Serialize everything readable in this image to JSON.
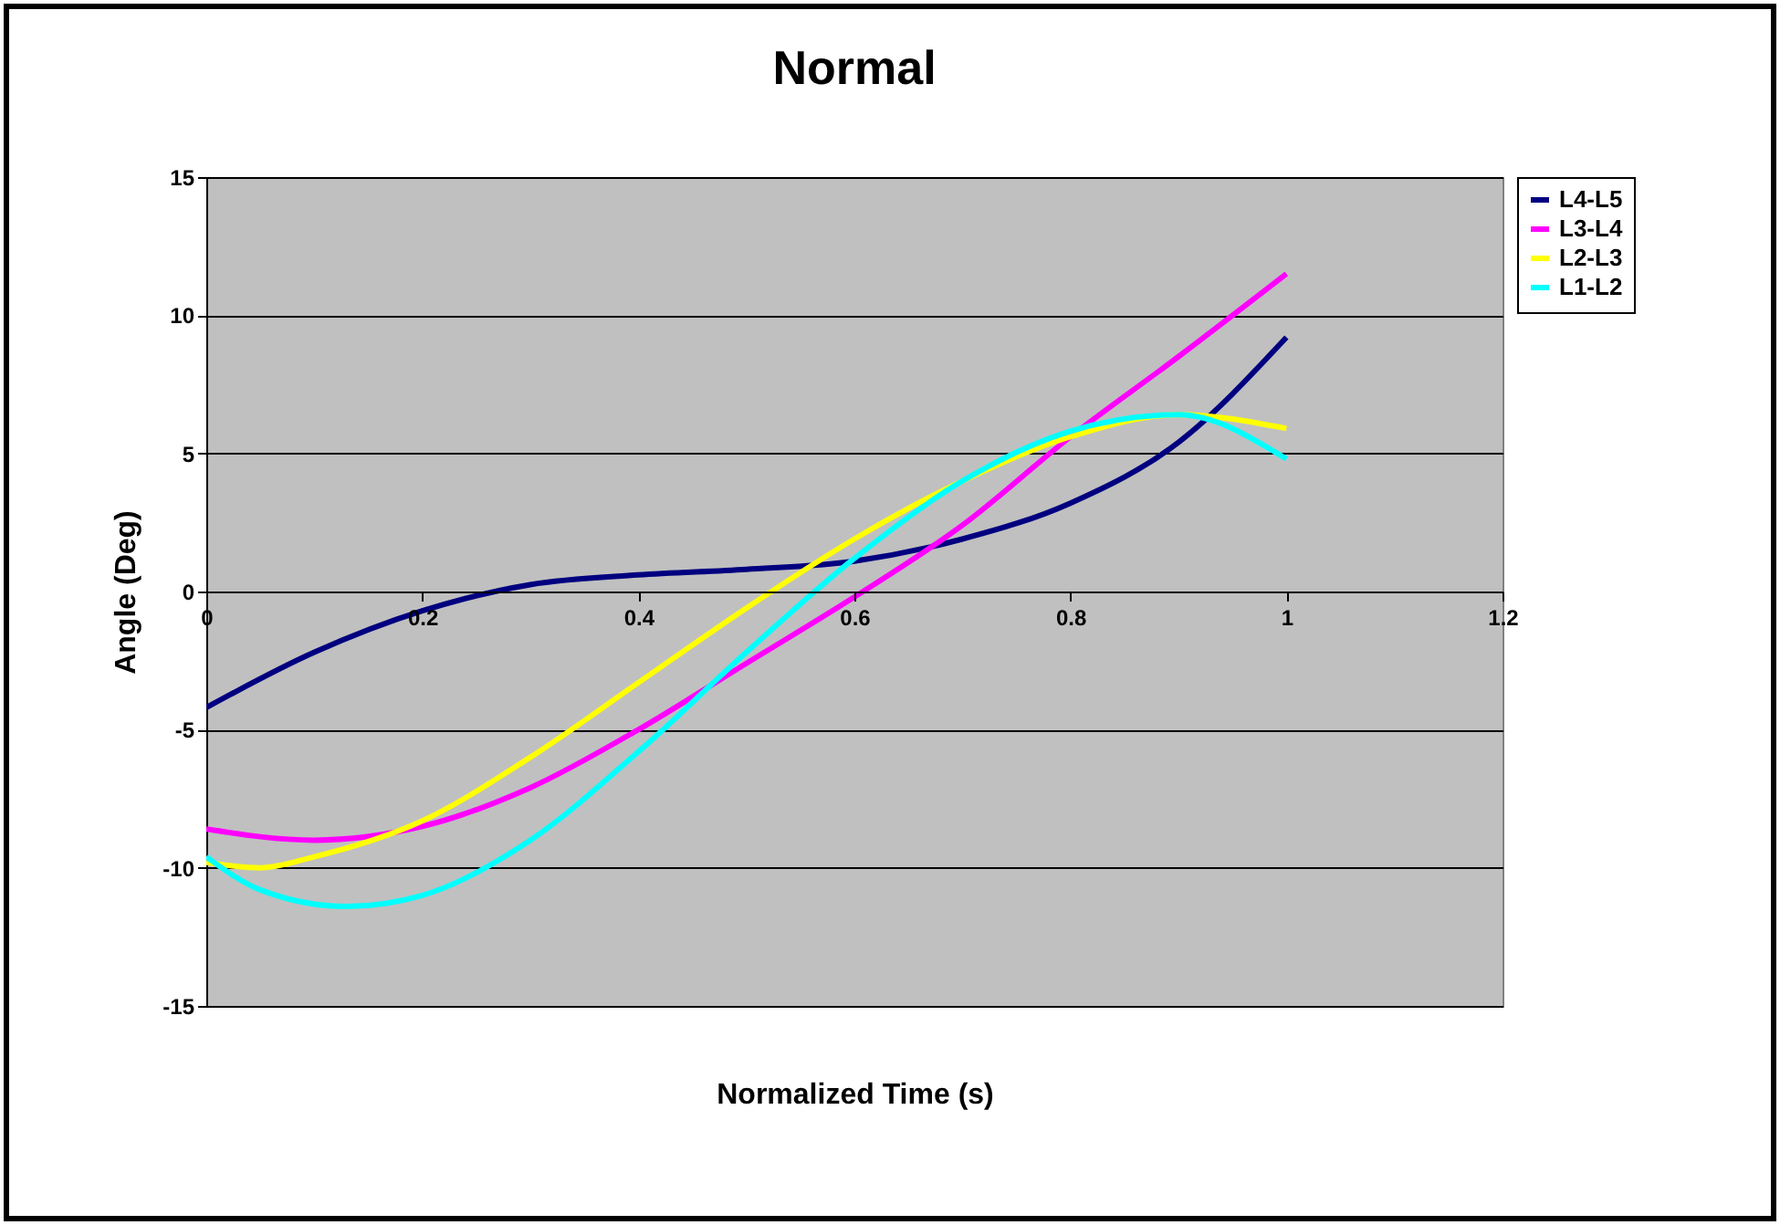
{
  "chart_data": {
    "type": "line",
    "title": "Normal",
    "xlabel": "Normalized Time (s)",
    "ylabel": "Angle (Deg)",
    "xlim": [
      0,
      1.2
    ],
    "xticks": [
      0,
      0.2,
      0.4,
      0.6,
      0.8,
      1,
      1.2
    ],
    "ylim": [
      -15,
      15
    ],
    "yticks": [
      -15,
      -10,
      -5,
      0,
      5,
      10,
      15
    ],
    "grid": "y",
    "legend": "right",
    "marker": "none",
    "line_style": "solid",
    "x": [
      0,
      0.1,
      0.2,
      0.3,
      0.4,
      0.5,
      0.6,
      0.7,
      0.8,
      0.9,
      1
    ],
    "series": [
      {
        "name": "L4-L5",
        "color": "#000080",
        "values": [
          -4.2,
          -2.2,
          -0.7,
          0.25,
          0.6,
          0.8,
          1.1,
          1.9,
          3.2,
          5.4,
          9.2
        ]
      },
      {
        "name": "L3-L4",
        "color": "#ff00ff",
        "values": [
          -8.6,
          -9.0,
          -8.5,
          -7.1,
          -5.0,
          -2.6,
          -0.2,
          2.4,
          5.6,
          8.5,
          11.5
        ]
      },
      {
        "name": "L2-L3",
        "color": "#ffff00",
        "x": [
          0,
          0.05,
          0.1,
          0.2,
          0.3,
          0.4,
          0.5,
          0.6,
          0.7,
          0.8,
          0.9,
          1
        ],
        "values": [
          -9.8,
          -10.0,
          -9.6,
          -8.3,
          -6.0,
          -3.3,
          -0.6,
          1.9,
          4.0,
          5.6,
          6.4,
          5.9
        ]
      },
      {
        "name": "L1-L2",
        "color": "#00ffff",
        "x": [
          0,
          0.05,
          0.13,
          0.2,
          0.3,
          0.4,
          0.5,
          0.6,
          0.7,
          0.8,
          0.9,
          1
        ],
        "values": [
          -9.6,
          -10.8,
          -11.4,
          -11.0,
          -9.0,
          -5.8,
          -2.2,
          1.2,
          4.0,
          5.8,
          6.4,
          4.8
        ]
      }
    ]
  }
}
